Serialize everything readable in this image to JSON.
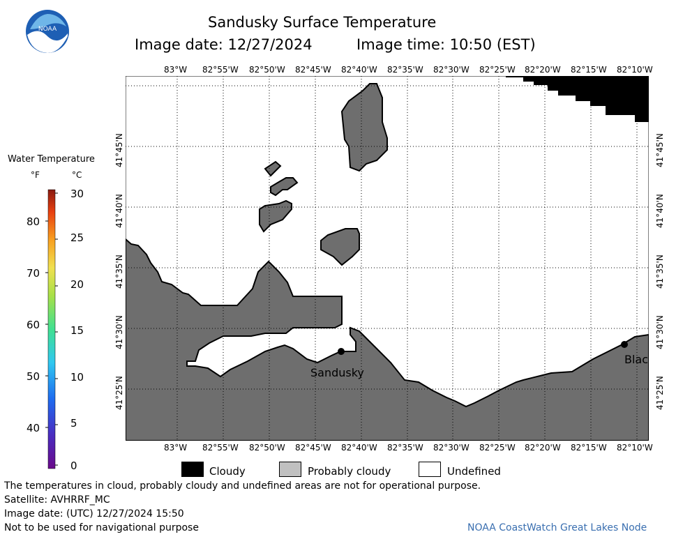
{
  "header": {
    "title": "Sandusky Surface Temperature",
    "image_date_label": "Image date: 12/27/2024",
    "image_time_label": "Image time: 10:50 (EST)"
  },
  "logo": {
    "text": "NOAA"
  },
  "colorbar": {
    "title": "Water Temperature",
    "unit_f": "°F",
    "unit_c": "°C",
    "f_ticks": [
      "80",
      "70",
      "60",
      "50",
      "40"
    ],
    "c_ticks": [
      "30",
      "25",
      "20",
      "15",
      "10",
      "5",
      "0"
    ]
  },
  "map": {
    "lon_labels": [
      "83°W",
      "82°55'W",
      "82°50'W",
      "82°45'W",
      "82°40'W",
      "82°35'W",
      "82°30'W",
      "82°25'W",
      "82°20'W",
      "82°15'W",
      "82°10'W"
    ],
    "lat_labels": [
      "41°45'N",
      "41°40'N",
      "41°35'N",
      "41°30'N",
      "41°25'N"
    ],
    "places": {
      "sandusky": "Sandusky",
      "blac": "Blac"
    }
  },
  "legend": {
    "cloudy": "Cloudy",
    "probably_cloudy": "Probably cloudy",
    "undefined": "Undefined",
    "cloudy_color": "#000000",
    "probably_cloudy_color": "#c0c0c0",
    "undefined_color": "#ffffff"
  },
  "footer": {
    "disclaimer": "The temperatures in cloud, probably cloudy and undefined areas are not for operational purpose.",
    "satellite": "Satellite: AVHRRF_MC",
    "image_date_utc": "Image date: (UTC) 12/27/2024  15:50",
    "navigation": "Not to be used for navigational purpose",
    "credit": "NOAA CoastWatch Great Lakes Node"
  },
  "colors": {
    "land": "#6e6e6e",
    "cloud": "#000000",
    "water": "#ffffff"
  }
}
